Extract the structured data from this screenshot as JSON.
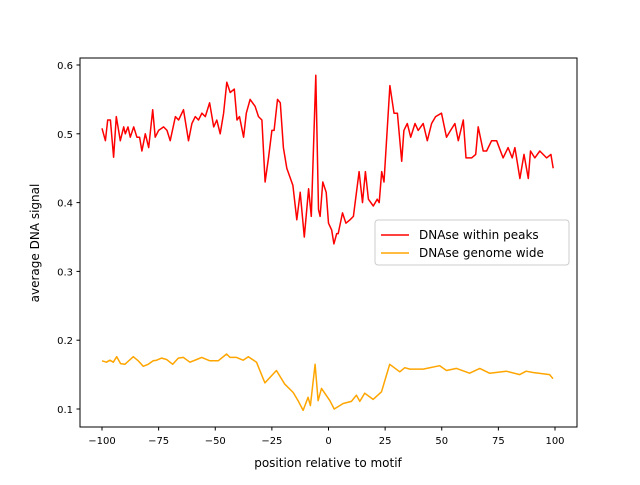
{
  "chart_data": {
    "type": "line",
    "title": "",
    "xlabel": "position relative to motif",
    "ylabel": "average DNA signal",
    "xlim": [
      -110,
      110
    ],
    "ylim": [
      0.075,
      0.61
    ],
    "xticks": [
      -100,
      -75,
      -50,
      -25,
      0,
      25,
      50,
      75,
      100
    ],
    "xtick_labels": [
      "−100",
      "−75",
      "−50",
      "−25",
      "0",
      "25",
      "50",
      "75",
      "100"
    ],
    "yticks": [
      0.1,
      0.2,
      0.3,
      0.4,
      0.5,
      0.6
    ],
    "ytick_labels": [
      "0.1",
      "0.2",
      "0.3",
      "0.4",
      "0.5",
      "0.6"
    ],
    "grid": false,
    "legend_position": "center-right",
    "series": [
      {
        "name": "DNAse within peaks",
        "color": "#ff0000",
        "x": [
          -100,
          -98.5,
          -97.5,
          -96.3,
          -94.9,
          -93.7,
          -91.9,
          -90.4,
          -89.7,
          -88.5,
          -87.5,
          -86,
          -84.6,
          -83.4,
          -82.4,
          -80.9,
          -79.4,
          -77.6,
          -76.5,
          -75,
          -72.8,
          -71.3,
          -69.9,
          -67.6,
          -66.2,
          -64,
          -61.8,
          -60.3,
          -58.8,
          -57.4,
          -55.9,
          -54.4,
          -52.5,
          -50.7,
          -49.3,
          -47.8,
          -46.3,
          -44.9,
          -43.4,
          -41.6,
          -40.4,
          -39.3,
          -37.5,
          -36.3,
          -34.6,
          -32.4,
          -30.9,
          -29.4,
          -28,
          -26.5,
          -25,
          -24,
          -22.5,
          -21.3,
          -19.9,
          -18.4,
          -15.7,
          -14,
          -12.5,
          -10.7,
          -8.8,
          -7.6,
          -5.6,
          -4.4,
          -3.7,
          -2.5,
          -1,
          0,
          1.4,
          2.4,
          3.6,
          4.3,
          6.2,
          7.7,
          9.5,
          11,
          13.5,
          15,
          16.3,
          17.6,
          19.8,
          21.5,
          22.4,
          23.5,
          24.5,
          27.1,
          28.9,
          30.4,
          32.3,
          33.3,
          34.8,
          36.3,
          38.2,
          39.6,
          41.8,
          43.6,
          45.5,
          47.3,
          49.9,
          52.1,
          53.9,
          55.8,
          57.3,
          59.5,
          60.7,
          63.2,
          65,
          66.1,
          68.3,
          69.8,
          72,
          74.2,
          77.1,
          79.3,
          81.1,
          82.3,
          84.5,
          86.3,
          88.2,
          89.2,
          91.1,
          93.3,
          96.3,
          98.2,
          99.2
        ],
        "y": [
          0.508,
          0.49,
          0.52,
          0.52,
          0.466,
          0.525,
          0.49,
          0.51,
          0.5,
          0.51,
          0.495,
          0.51,
          0.495,
          0.495,
          0.475,
          0.5,
          0.48,
          0.535,
          0.495,
          0.505,
          0.51,
          0.505,
          0.49,
          0.525,
          0.52,
          0.535,
          0.49,
          0.515,
          0.525,
          0.52,
          0.53,
          0.525,
          0.545,
          0.51,
          0.52,
          0.5,
          0.53,
          0.575,
          0.56,
          0.565,
          0.52,
          0.525,
          0.495,
          0.53,
          0.55,
          0.54,
          0.525,
          0.52,
          0.43,
          0.465,
          0.505,
          0.505,
          0.55,
          0.545,
          0.48,
          0.45,
          0.425,
          0.375,
          0.415,
          0.35,
          0.42,
          0.38,
          0.585,
          0.39,
          0.38,
          0.43,
          0.415,
          0.37,
          0.36,
          0.34,
          0.355,
          0.355,
          0.385,
          0.37,
          0.375,
          0.38,
          0.445,
          0.4,
          0.445,
          0.405,
          0.395,
          0.405,
          0.4,
          0.445,
          0.43,
          0.57,
          0.53,
          0.53,
          0.46,
          0.505,
          0.515,
          0.495,
          0.515,
          0.505,
          0.515,
          0.49,
          0.515,
          0.525,
          0.53,
          0.495,
          0.505,
          0.515,
          0.49,
          0.52,
          0.465,
          0.465,
          0.47,
          0.51,
          0.475,
          0.475,
          0.49,
          0.49,
          0.465,
          0.48,
          0.465,
          0.48,
          0.435,
          0.47,
          0.435,
          0.475,
          0.465,
          0.475,
          0.465,
          0.47,
          0.45
        ]
      },
      {
        "name": "DNAse genome wide",
        "color": "#ffa500",
        "x": [
          -100,
          -98,
          -96.5,
          -95,
          -93.5,
          -91.8,
          -89.9,
          -86.2,
          -84,
          -81.8,
          -79.6,
          -77.4,
          -75.9,
          -73.7,
          -71.5,
          -68.8,
          -66.3,
          -64.1,
          -61.2,
          -58.2,
          -56,
          -52.4,
          -48.7,
          -45,
          -43.5,
          -40.6,
          -37.7,
          -35.4,
          -31.8,
          -28.1,
          -23,
          -19.3,
          -15.6,
          -13.4,
          -11.2,
          -9,
          -8,
          -5.9,
          -4.6,
          -3.1,
          0.6,
          2.5,
          6.5,
          10.1,
          12.3,
          13.8,
          16,
          19.7,
          23.4,
          27,
          31.5,
          33.7,
          35.9,
          41.8,
          49.1,
          52.1,
          56.5,
          62.3,
          66.8,
          71.1,
          78.5,
          84.4,
          87.3,
          90.3,
          97.6,
          99.1
        ],
        "y": [
          0.17,
          0.168,
          0.171,
          0.168,
          0.176,
          0.166,
          0.165,
          0.176,
          0.17,
          0.162,
          0.165,
          0.17,
          0.171,
          0.174,
          0.172,
          0.165,
          0.174,
          0.175,
          0.168,
          0.172,
          0.175,
          0.17,
          0.17,
          0.18,
          0.175,
          0.175,
          0.171,
          0.176,
          0.168,
          0.138,
          0.156,
          0.136,
          0.124,
          0.112,
          0.098,
          0.117,
          0.105,
          0.165,
          0.112,
          0.13,
          0.112,
          0.1,
          0.108,
          0.111,
          0.12,
          0.111,
          0.123,
          0.114,
          0.125,
          0.165,
          0.154,
          0.16,
          0.158,
          0.158,
          0.163,
          0.156,
          0.159,
          0.152,
          0.159,
          0.152,
          0.155,
          0.15,
          0.155,
          0.153,
          0.15,
          0.144
        ]
      }
    ]
  }
}
